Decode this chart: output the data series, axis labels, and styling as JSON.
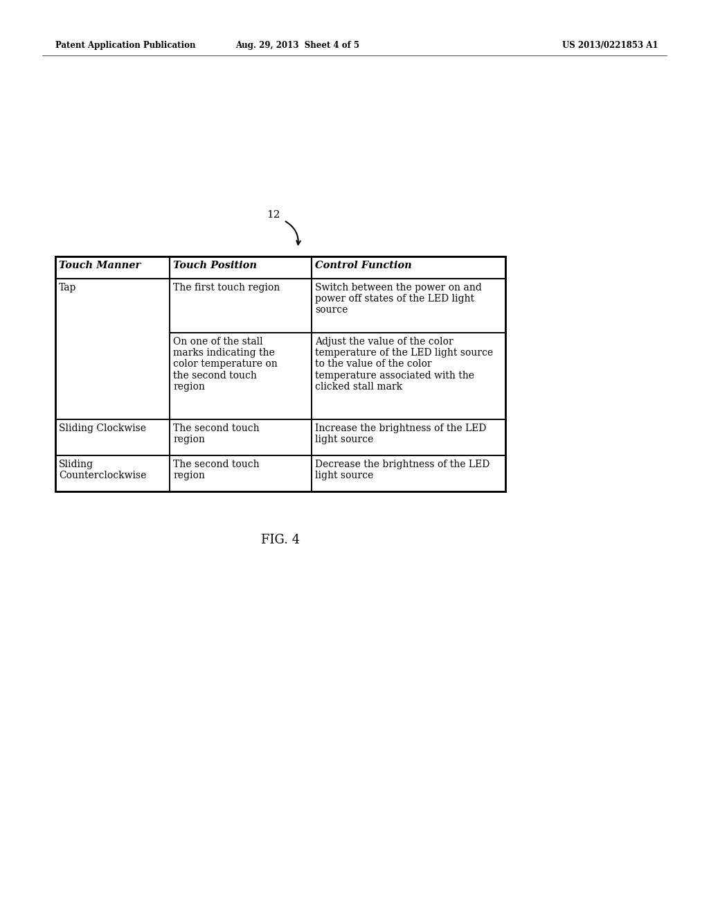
{
  "header_text": [
    "Touch Manner",
    "Touch Position",
    "Control Function"
  ],
  "rows": [
    {
      "col0": "Tap",
      "col1": "The first touch region",
      "col2": "Switch between the power on and\npower off states of the LED light\nsource"
    },
    {
      "col0": "",
      "col1": "On one of the stall\nmarks indicating the\ncolor temperature on\nthe second touch\nregion",
      "col2": "Adjust the value of the color\ntemperature of the LED light source\nto the value of the color\ntemperature associated with the\nclicked stall mark"
    },
    {
      "col0": "Sliding Clockwise",
      "col1": "The second touch\nregion",
      "col2": "Increase the brightness of the LED\nlight source"
    },
    {
      "col0": "Sliding\nCounterclockwise",
      "col1": "The second touch\nregion",
      "col2": "Decrease the brightness of the LED\nlight source"
    }
  ],
  "patent_left": "Patent Application Publication",
  "patent_center": "Aug. 29, 2013  Sheet 4 of 5",
  "patent_right": "US 2013/0221853 A1",
  "background_color": "#ffffff",
  "text_color": "#000000",
  "header_fontsize": 10.5,
  "body_fontsize": 10.0,
  "patent_fontsize": 8.5,
  "fig_label_fontsize": 13,
  "fig_label": "FIG. 4"
}
